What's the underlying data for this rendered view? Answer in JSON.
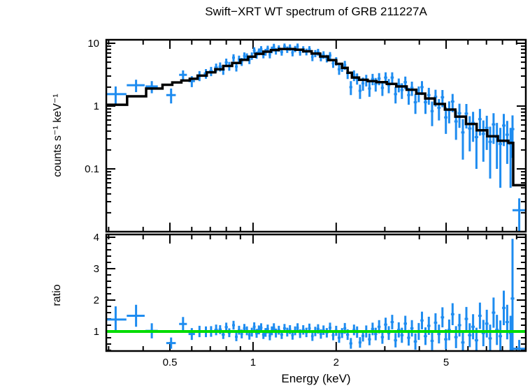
{
  "figure": {
    "title": "Swift−XRT WT spectrum of GRB 211227A",
    "xlabel": "Energy (keV)",
    "ylabel_top": "counts s⁻¹ keV⁻¹",
    "ylabel_bottom": "ratio"
  },
  "colors": {
    "background": "#FFFFFF",
    "text": "#000000",
    "frame": "#000000",
    "data": "#1E8CF0",
    "model": "#000000",
    "reference_line": "#00DC00"
  },
  "chart_data": {
    "type": "scatter",
    "title": "Swift−XRT WT spectrum of GRB 211227A",
    "xlabel": "Energy (keV)",
    "xscale": "log",
    "xlim": [
      0.295,
      9.85
    ],
    "x_ticks": {
      "major": [
        0.5,
        1,
        2,
        5
      ],
      "major_labels": [
        "0.5",
        "1",
        "2",
        "5"
      ],
      "minor": [
        0.3,
        0.4,
        0.6,
        0.7,
        0.8,
        0.9,
        3,
        4,
        6,
        7,
        8,
        9
      ]
    },
    "panels": [
      {
        "name": "spectrum",
        "ylabel": "counts s⁻¹ keV⁻¹",
        "yscale": "log",
        "ylim": [
          0.0097,
          11.4
        ],
        "y_major_ticks": [
          10,
          1,
          0.1,
          0.01
        ],
        "y_major_labels": [
          "10",
          "1",
          "0.1",
          ""
        ],
        "model_bins": [
          [
            0.29,
            0.35,
            1.05
          ],
          [
            0.35,
            0.41,
            1.43
          ],
          [
            0.41,
            0.47,
            1.9
          ],
          [
            0.47,
            0.51,
            2.18
          ],
          [
            0.51,
            0.55,
            2.38
          ],
          [
            0.55,
            0.59,
            2.55
          ],
          [
            0.59,
            0.63,
            2.72
          ],
          [
            0.63,
            0.68,
            3.05
          ],
          [
            0.68,
            0.73,
            3.45
          ],
          [
            0.73,
            0.78,
            3.85
          ],
          [
            0.78,
            0.84,
            4.35
          ],
          [
            0.84,
            0.9,
            4.85
          ],
          [
            0.9,
            0.96,
            5.45
          ],
          [
            0.96,
            1.02,
            6.1
          ],
          [
            1.02,
            1.09,
            6.8
          ],
          [
            1.09,
            1.16,
            7.35
          ],
          [
            1.16,
            1.24,
            7.8
          ],
          [
            1.24,
            1.33,
            8.1
          ],
          [
            1.33,
            1.42,
            8.1
          ],
          [
            1.42,
            1.52,
            7.9
          ],
          [
            1.52,
            1.63,
            7.45
          ],
          [
            1.63,
            1.75,
            6.85
          ],
          [
            1.75,
            1.87,
            6.15
          ],
          [
            1.87,
            2.0,
            5.4
          ],
          [
            2.0,
            2.1,
            4.7
          ],
          [
            2.1,
            2.2,
            4.05
          ],
          [
            2.2,
            2.28,
            3.4
          ],
          [
            2.28,
            2.42,
            2.85
          ],
          [
            2.42,
            2.6,
            2.62
          ],
          [
            2.6,
            2.8,
            2.5
          ],
          [
            2.8,
            3.05,
            2.4
          ],
          [
            3.05,
            3.3,
            2.25
          ],
          [
            3.3,
            3.6,
            2.05
          ],
          [
            3.6,
            3.9,
            1.82
          ],
          [
            3.9,
            4.2,
            1.58
          ],
          [
            4.2,
            4.55,
            1.32
          ],
          [
            4.55,
            4.95,
            1.08
          ],
          [
            4.95,
            5.4,
            0.88
          ],
          [
            5.4,
            5.9,
            0.68
          ],
          [
            5.9,
            6.45,
            0.52
          ],
          [
            6.45,
            7.05,
            0.41
          ],
          [
            7.05,
            7.7,
            0.33
          ],
          [
            7.7,
            8.4,
            0.28
          ],
          [
            8.4,
            8.75,
            0.26
          ],
          [
            8.75,
            9.9,
            0.055
          ]
        ]
      },
      {
        "name": "ratio",
        "ylabel": "ratio",
        "yscale": "linear",
        "ylim": [
          0.38,
          4.09
        ],
        "y_major_ticks": [
          1,
          2,
          3,
          4
        ],
        "y_major_labels": [
          "1",
          "2",
          "3",
          "4"
        ],
        "y_minor_step": 0.2,
        "reference_line": 1.0
      }
    ],
    "points_format": [
      "energy_keV",
      "denergy_keV",
      "counts_per_s_keV",
      "dcounts",
      "ratio",
      "dratio"
    ],
    "points": [
      [
        0.318,
        0.03,
        1.55,
        0.5,
        1.38,
        0.42
      ],
      [
        0.377,
        0.028,
        2.15,
        0.48,
        1.5,
        0.35
      ],
      [
        0.43,
        0.022,
        2.05,
        0.45,
        1.02,
        0.24
      ],
      [
        0.505,
        0.02,
        1.5,
        0.4,
        0.63,
        0.18
      ],
      [
        0.558,
        0.018,
        3.15,
        0.55,
        1.24,
        0.22
      ],
      [
        0.6,
        0.016,
        2.5,
        0.5,
        0.92,
        0.19
      ],
      [
        0.64,
        0.014,
        3.05,
        0.55,
        1.0,
        0.18
      ],
      [
        0.675,
        0.012,
        3.3,
        0.58,
        0.99,
        0.17
      ],
      [
        0.705,
        0.011,
        3.6,
        0.6,
        1.0,
        0.17
      ],
      [
        0.735,
        0.011,
        4.1,
        0.65,
        1.05,
        0.17
      ],
      [
        0.76,
        0.01,
        4.25,
        0.7,
        1.06,
        0.14
      ],
      [
        0.78,
        0.01,
        3.8,
        0.65,
        0.9,
        0.14
      ],
      [
        0.8,
        0.01,
        4.95,
        0.75,
        1.14,
        0.14
      ],
      [
        0.82,
        0.01,
        4.35,
        0.7,
        0.96,
        0.14
      ],
      [
        0.85,
        0.01,
        5.9,
        0.8,
        1.2,
        0.14
      ],
      [
        0.87,
        0.01,
        4.25,
        0.7,
        0.83,
        0.14
      ],
      [
        0.89,
        0.01,
        5.55,
        0.8,
        1.04,
        0.14
      ],
      [
        0.91,
        0.01,
        5.1,
        0.75,
        0.92,
        0.14
      ],
      [
        0.93,
        0.01,
        6.3,
        0.85,
        1.1,
        0.14
      ],
      [
        0.95,
        0.01,
        6.05,
        0.85,
        1.02,
        0.14
      ],
      [
        0.97,
        0.01,
        5.45,
        0.8,
        0.88,
        0.14
      ],
      [
        0.99,
        0.01,
        6.3,
        0.85,
        0.98,
        0.14
      ],
      [
        1.01,
        0.012,
        7.7,
        0.95,
        1.15,
        0.14
      ],
      [
        1.03,
        0.012,
        6.5,
        0.85,
        0.94,
        0.14
      ],
      [
        1.05,
        0.012,
        7.35,
        0.9,
        1.05,
        0.14
      ],
      [
        1.07,
        0.012,
        8.05,
        0.95,
        1.12,
        0.14
      ],
      [
        1.09,
        0.012,
        6.6,
        0.85,
        0.9,
        0.14
      ],
      [
        1.11,
        0.012,
        7.25,
        0.9,
        0.97,
        0.14
      ],
      [
        1.13,
        0.012,
        8.2,
        0.95,
        1.08,
        0.14
      ],
      [
        1.15,
        0.012,
        6.6,
        0.85,
        0.86,
        0.14
      ],
      [
        1.17,
        0.012,
        7.9,
        0.95,
        1.02,
        0.14
      ],
      [
        1.19,
        0.012,
        8.8,
        1.0,
        1.12,
        0.14
      ],
      [
        1.21,
        0.012,
        7.5,
        0.9,
        0.95,
        0.14
      ],
      [
        1.24,
        0.015,
        8.3,
        0.95,
        1.04,
        0.14
      ],
      [
        1.27,
        0.015,
        7.25,
        0.9,
        0.9,
        0.14
      ],
      [
        1.3,
        0.015,
        8.9,
        1.0,
        1.1,
        0.14
      ],
      [
        1.33,
        0.015,
        7.95,
        0.95,
        0.98,
        0.14
      ],
      [
        1.36,
        0.015,
        8.6,
        1.0,
        1.06,
        0.14
      ],
      [
        1.39,
        0.015,
        7.1,
        0.9,
        0.88,
        0.14
      ],
      [
        1.42,
        0.015,
        8.15,
        0.95,
        1.02,
        0.14
      ],
      [
        1.45,
        0.015,
        8.9,
        1.0,
        1.12,
        0.14
      ],
      [
        1.48,
        0.015,
        7.25,
        0.9,
        0.93,
        0.14
      ],
      [
        1.52,
        0.018,
        8.0,
        0.95,
        1.05,
        0.15
      ],
      [
        1.56,
        0.018,
        7.3,
        0.9,
        0.97,
        0.15
      ],
      [
        1.6,
        0.018,
        8.05,
        0.95,
        1.1,
        0.15
      ],
      [
        1.64,
        0.018,
        6.05,
        0.85,
        0.85,
        0.15
      ],
      [
        1.68,
        0.018,
        6.9,
        0.9,
        1.0,
        0.15
      ],
      [
        1.72,
        0.02,
        7.25,
        0.9,
        1.08,
        0.15
      ],
      [
        1.76,
        0.02,
        6.0,
        0.85,
        0.92,
        0.15
      ],
      [
        1.8,
        0.02,
        6.55,
        0.9,
        1.04,
        0.15
      ],
      [
        1.85,
        0.022,
        5.75,
        0.8,
        0.96,
        0.15
      ],
      [
        1.9,
        0.022,
        6.4,
        0.85,
        1.12,
        0.16
      ],
      [
        1.95,
        0.022,
        4.8,
        0.75,
        0.88,
        0.16
      ],
      [
        2.0,
        0.025,
        5.2,
        0.8,
        1.02,
        0.16
      ],
      [
        2.05,
        0.025,
        3.85,
        0.7,
        0.8,
        0.16
      ],
      [
        2.1,
        0.025,
        4.2,
        0.7,
        0.95,
        0.16
      ],
      [
        2.15,
        0.025,
        4.5,
        0.75,
        1.1,
        0.17
      ],
      [
        2.2,
        0.028,
        3.35,
        0.65,
        0.9,
        0.17
      ],
      [
        2.26,
        0.028,
        2.0,
        0.5,
        0.62,
        0.17
      ],
      [
        2.32,
        0.028,
        3.1,
        0.6,
        1.05,
        0.17
      ],
      [
        2.38,
        0.03,
        2.75,
        0.55,
        0.98,
        0.18
      ],
      [
        2.44,
        0.03,
        1.75,
        0.45,
        0.65,
        0.17
      ],
      [
        2.5,
        0.03,
        2.3,
        0.55,
        0.86,
        0.18
      ],
      [
        2.57,
        0.033,
        2.6,
        0.55,
        1.0,
        0.19
      ],
      [
        2.64,
        0.033,
        1.9,
        0.5,
        0.75,
        0.19
      ],
      [
        2.71,
        0.035,
        2.7,
        0.55,
        1.08,
        0.2
      ],
      [
        2.78,
        0.035,
        2.25,
        0.55,
        0.92,
        0.2
      ],
      [
        2.86,
        0.038,
        2.75,
        0.6,
        1.15,
        0.21
      ],
      [
        2.94,
        0.038,
        1.95,
        0.5,
        0.82,
        0.21
      ],
      [
        3.02,
        0.04,
        2.85,
        0.6,
        1.22,
        0.22
      ],
      [
        3.1,
        0.04,
        2.15,
        0.55,
        0.95,
        0.22
      ],
      [
        3.19,
        0.043,
        2.85,
        0.6,
        1.3,
        0.23
      ],
      [
        3.28,
        0.043,
        1.55,
        0.45,
        0.72,
        0.23
      ],
      [
        3.37,
        0.045,
        2.2,
        0.55,
        1.05,
        0.24
      ],
      [
        3.46,
        0.045,
        1.8,
        0.5,
        0.88,
        0.24
      ],
      [
        3.56,
        0.048,
        2.4,
        0.55,
        1.25,
        0.25
      ],
      [
        3.66,
        0.048,
        1.5,
        0.45,
        0.8,
        0.25
      ],
      [
        3.76,
        0.05,
        1.95,
        0.5,
        1.1,
        0.26
      ],
      [
        3.87,
        0.053,
        1.15,
        0.4,
        0.68,
        0.26
      ],
      [
        3.98,
        0.055,
        1.6,
        0.45,
        1.0,
        0.27
      ],
      [
        4.09,
        0.055,
        2.0,
        0.5,
        1.35,
        0.28
      ],
      [
        4.21,
        0.058,
        1.15,
        0.4,
        0.85,
        0.28
      ],
      [
        4.33,
        0.058,
        1.5,
        0.45,
        1.18,
        0.29
      ],
      [
        4.45,
        0.06,
        0.83,
        0.35,
        0.7,
        0.29
      ],
      [
        4.58,
        0.063,
        1.4,
        0.42,
        1.28,
        0.3
      ],
      [
        4.71,
        0.065,
        0.94,
        0.35,
        0.92,
        0.3
      ],
      [
        4.85,
        0.068,
        1.38,
        0.42,
        1.45,
        0.32
      ],
      [
        4.99,
        0.07,
        0.66,
        0.3,
        0.75,
        0.32
      ],
      [
        5.13,
        0.072,
        0.86,
        0.33,
        1.05,
        0.33
      ],
      [
        5.28,
        0.075,
        1.18,
        0.38,
        1.55,
        0.35
      ],
      [
        5.43,
        0.078,
        0.57,
        0.28,
        0.82,
        0.35
      ],
      [
        5.59,
        0.08,
        0.77,
        0.32,
        1.2,
        0.36
      ],
      [
        5.75,
        0.082,
        0.38,
        0.24,
        0.65,
        0.36
      ],
      [
        5.92,
        0.085,
        0.76,
        0.32,
        1.4,
        0.38
      ],
      [
        6.09,
        0.088,
        0.44,
        0.25,
        0.88,
        0.38
      ],
      [
        6.26,
        0.09,
        0.54,
        0.27,
        1.15,
        0.4
      ],
      [
        6.44,
        0.092,
        0.32,
        0.22,
        0.72,
        0.4
      ],
      [
        6.63,
        0.095,
        0.62,
        0.28,
        1.5,
        0.42
      ],
      [
        6.82,
        0.098,
        0.36,
        0.23,
        0.95,
        0.42
      ],
      [
        7.02,
        0.1,
        0.45,
        0.25,
        1.25,
        0.44
      ],
      [
        7.22,
        0.105,
        0.27,
        0.2,
        0.78,
        0.44
      ],
      [
        7.43,
        0.108,
        0.51,
        0.26,
        1.6,
        0.48
      ],
      [
        7.64,
        0.11,
        0.32,
        0.22,
        1.05,
        0.48
      ],
      [
        7.86,
        0.113,
        0.25,
        0.2,
        0.85,
        0.5
      ],
      [
        8.09,
        0.115,
        0.49,
        0.26,
        1.75,
        0.55
      ],
      [
        8.32,
        0.118,
        0.35,
        0.23,
        1.3,
        0.55
      ],
      [
        8.56,
        0.12,
        0.25,
        0.2,
        0.95,
        0.55
      ],
      [
        8.7,
        0.13,
        0.43,
        0.28,
        2.05,
        1.9
      ],
      [
        9.2,
        0.5,
        0.022,
        0.012,
        0.45,
        0.28
      ]
    ]
  }
}
